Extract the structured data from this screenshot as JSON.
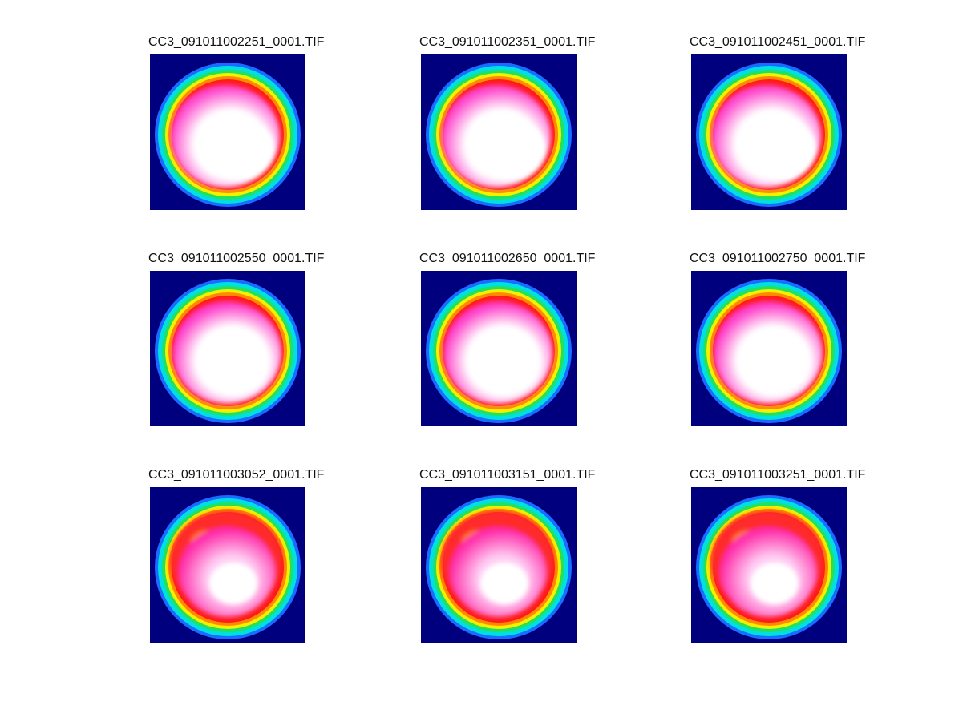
{
  "figure": {
    "panels": [
      {
        "title": "CC3_091011002251_0001.TIF",
        "core": "#ffffff",
        "pink": "#ff44cc",
        "variant": "A"
      },
      {
        "title": "CC3_091011002351_0001.TIF",
        "core": "#ffffff",
        "pink": "#ff44cc",
        "variant": "A"
      },
      {
        "title": "CC3_091011002451_0001.TIF",
        "core": "#ffffff",
        "pink": "#ff44cc",
        "variant": "A"
      },
      {
        "title": "CC3_091011002550_0001.TIF",
        "core": "#ffffff",
        "pink": "#ff3ac8",
        "variant": "B"
      },
      {
        "title": "CC3_091011002650_0001.TIF",
        "core": "#ffffff",
        "pink": "#ff3ac8",
        "variant": "B"
      },
      {
        "title": "CC3_091011002750_0001.TIF",
        "core": "#ffffff",
        "pink": "#ff3ac8",
        "variant": "B"
      },
      {
        "title": "CC3_091011003052_0001.TIF",
        "core": "#ffd0f4",
        "pink": "#ff2aa8",
        "variant": "C"
      },
      {
        "title": "CC3_091011003151_0001.TIF",
        "core": "#ffd0f4",
        "pink": "#ff2aa8",
        "variant": "C"
      },
      {
        "title": "CC3_091011003251_0001.TIF",
        "core": "#ffd0f4",
        "pink": "#ff2aa8",
        "variant": "C"
      }
    ],
    "colors": {
      "background": "#00007f",
      "ring_blue": "#1a6bff",
      "ring_cyan": "#00e0e0",
      "ring_green": "#22e060",
      "ring_yellow": "#f4f000",
      "ring_orange": "#ff8a00",
      "ring_red": "#ff1a1a"
    }
  }
}
